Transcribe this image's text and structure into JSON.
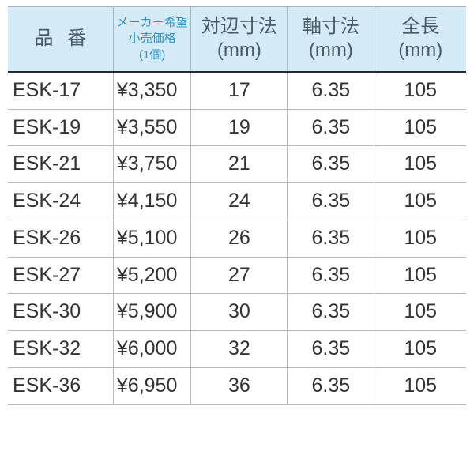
{
  "table": {
    "headers": {
      "part": {
        "label": "品番"
      },
      "price": {
        "line1": "メーカー希望",
        "line2": "小売価格",
        "line3": "(1個)"
      },
      "outer": {
        "label": "対辺寸法",
        "unit": "(mm)"
      },
      "shaft": {
        "label": "軸寸法",
        "unit": "(mm)"
      },
      "length": {
        "label": "全長",
        "unit": "(mm)"
      }
    },
    "rows": [
      {
        "part": "ESK-17",
        "price": "¥3,350",
        "outer": "17",
        "shaft": "6.35",
        "length": "105"
      },
      {
        "part": "ESK-19",
        "price": "¥3,550",
        "outer": "19",
        "shaft": "6.35",
        "length": "105"
      },
      {
        "part": "ESK-21",
        "price": "¥3,750",
        "outer": "21",
        "shaft": "6.35",
        "length": "105"
      },
      {
        "part": "ESK-24",
        "price": "¥4,150",
        "outer": "24",
        "shaft": "6.35",
        "length": "105"
      },
      {
        "part": "ESK-26",
        "price": "¥5,100",
        "outer": "26",
        "shaft": "6.35",
        "length": "105"
      },
      {
        "part": "ESK-27",
        "price": "¥5,200",
        "outer": "27",
        "shaft": "6.35",
        "length": "105"
      },
      {
        "part": "ESK-30",
        "price": "¥5,900",
        "outer": "30",
        "shaft": "6.35",
        "length": "105"
      },
      {
        "part": "ESK-32",
        "price": "¥6,000",
        "outer": "32",
        "shaft": "6.35",
        "length": "105"
      },
      {
        "part": "ESK-36",
        "price": "¥6,950",
        "outer": "36",
        "shaft": "6.35",
        "length": "105"
      }
    ]
  },
  "style": {
    "header_bg": "#d4eaf4",
    "header_text": "#4a5a6a",
    "price_header_text": "#2e8fc9",
    "row_border": "#b8b8b8",
    "header_bottom_border": "#2a2a2a",
    "body_text": "#333333",
    "background": "#ffffff",
    "header_fontsize": 24,
    "price_header_fontsize": 15,
    "body_fontsize": 25,
    "col_widths_pct": [
      23,
      17,
      21,
      19,
      20
    ]
  }
}
